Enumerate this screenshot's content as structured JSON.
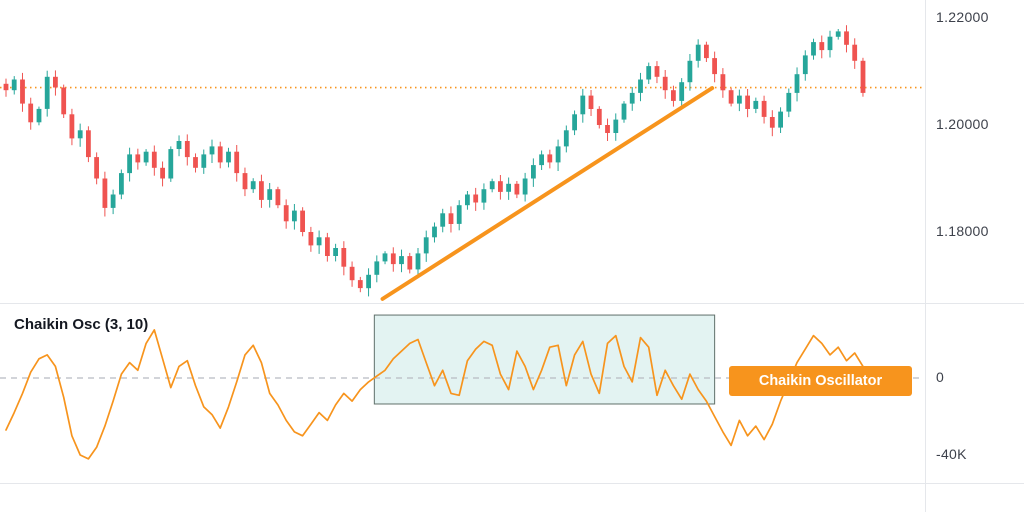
{
  "colors": {
    "up": "#26a69a",
    "down": "#ef5350",
    "accent_orange": "#f7941d",
    "zero_line": "#b7bac2",
    "grid": "#e5e7eb",
    "box_fill": "rgba(38,166,154,0.13)",
    "box_border": "#60706a",
    "axis_text": "#3d414b",
    "title_text": "#141821",
    "badge_text": "#ffffff",
    "background": "#ffffff"
  },
  "indicator": {
    "title": "Chaikin Osc (3, 10)",
    "badge_label": "Chaikin Oscillator"
  },
  "price_axis": {
    "labels": [
      {
        "text": "1.22000",
        "value": 1.22
      },
      {
        "text": "1.20000",
        "value": 1.2
      },
      {
        "text": "1.18000",
        "value": 1.18
      }
    ]
  },
  "oscillator_axis": {
    "labels": [
      {
        "text": "0",
        "value_k": 0
      },
      {
        "text": "-40K",
        "value_k": -40
      }
    ]
  },
  "chart_data": [
    {
      "type": "candlestick",
      "name": "price-series",
      "ylim": [
        1.166,
        1.224
      ],
      "axis_tick_labels": [
        "1.22000",
        "1.20000",
        "1.18000"
      ],
      "closes": [
        1.2065,
        1.2085,
        1.204,
        1.2005,
        1.203,
        1.209,
        1.207,
        1.202,
        1.1975,
        1.199,
        1.194,
        1.19,
        1.1845,
        1.187,
        1.191,
        1.1945,
        1.193,
        1.195,
        1.192,
        1.19,
        1.1955,
        1.197,
        1.194,
        1.192,
        1.1945,
        1.196,
        1.193,
        1.195,
        1.191,
        1.188,
        1.1895,
        1.186,
        1.188,
        1.185,
        1.182,
        1.184,
        1.18,
        1.1775,
        1.179,
        1.1755,
        1.177,
        1.1735,
        1.171,
        1.1695,
        1.172,
        1.1745,
        1.176,
        1.174,
        1.1755,
        1.173,
        1.176,
        1.179,
        1.181,
        1.1835,
        1.1815,
        1.185,
        1.187,
        1.1855,
        1.188,
        1.1895,
        1.1875,
        1.189,
        1.187,
        1.19,
        1.1925,
        1.1945,
        1.193,
        1.196,
        1.199,
        1.202,
        1.2055,
        1.203,
        1.2,
        1.1985,
        1.201,
        1.204,
        1.206,
        1.2085,
        1.211,
        1.209,
        1.2065,
        1.2045,
        1.208,
        1.212,
        1.215,
        1.2125,
        1.2095,
        1.2065,
        1.204,
        1.2055,
        1.203,
        1.2045,
        1.2015,
        1.1995,
        1.2025,
        1.206,
        1.2095,
        1.213,
        1.2155,
        1.214,
        1.2165,
        1.2175,
        1.215,
        1.212,
        1.206
      ],
      "annotations": {
        "price_level_dotted": 1.207,
        "trendline": {
          "start_index": 45.7,
          "start_price": 1.1675,
          "end_index": 85.7,
          "end_price": 1.2069
        }
      }
    },
    {
      "type": "line",
      "name": "Chaikin Osc (3, 10)",
      "unit": "K",
      "ylim_k": [
        -55,
        35
      ],
      "axis_tick_labels": [
        "0",
        "-40K"
      ],
      "zero_dashed_line": 0,
      "values_k": [
        -27,
        -18,
        -8,
        3,
        10,
        12,
        6,
        -10,
        -30,
        -40,
        -42,
        -36,
        -25,
        -12,
        2,
        8,
        4,
        18,
        25,
        10,
        -5,
        6,
        9,
        -4,
        -15,
        -19,
        -26,
        -15,
        -2,
        12,
        17,
        8,
        -8,
        -14,
        -22,
        -28,
        -30,
        -24,
        -18,
        -22,
        -14,
        -8,
        -12,
        -6,
        -2,
        1,
        4,
        10,
        14,
        18,
        20,
        8,
        -4,
        4,
        -8,
        -9,
        9,
        15,
        19,
        17,
        2,
        -6,
        14,
        6,
        -6,
        4,
        16,
        17,
        -4,
        12,
        19,
        2,
        -8,
        18,
        22,
        6,
        -2,
        21,
        16,
        -9,
        4,
        -4,
        -11,
        2,
        -6,
        -12,
        -20,
        -28,
        -35,
        -22,
        -30,
        -25,
        -32,
        -24,
        -12,
        -2,
        8,
        15,
        22,
        18,
        12,
        16,
        9,
        13,
        6
      ],
      "highlight_box": {
        "start_index": 44.7,
        "end_index": 86,
        "top_k": 32.7,
        "bottom_k": -13.5
      },
      "label_badge": "Chaikin Oscillator"
    }
  ]
}
